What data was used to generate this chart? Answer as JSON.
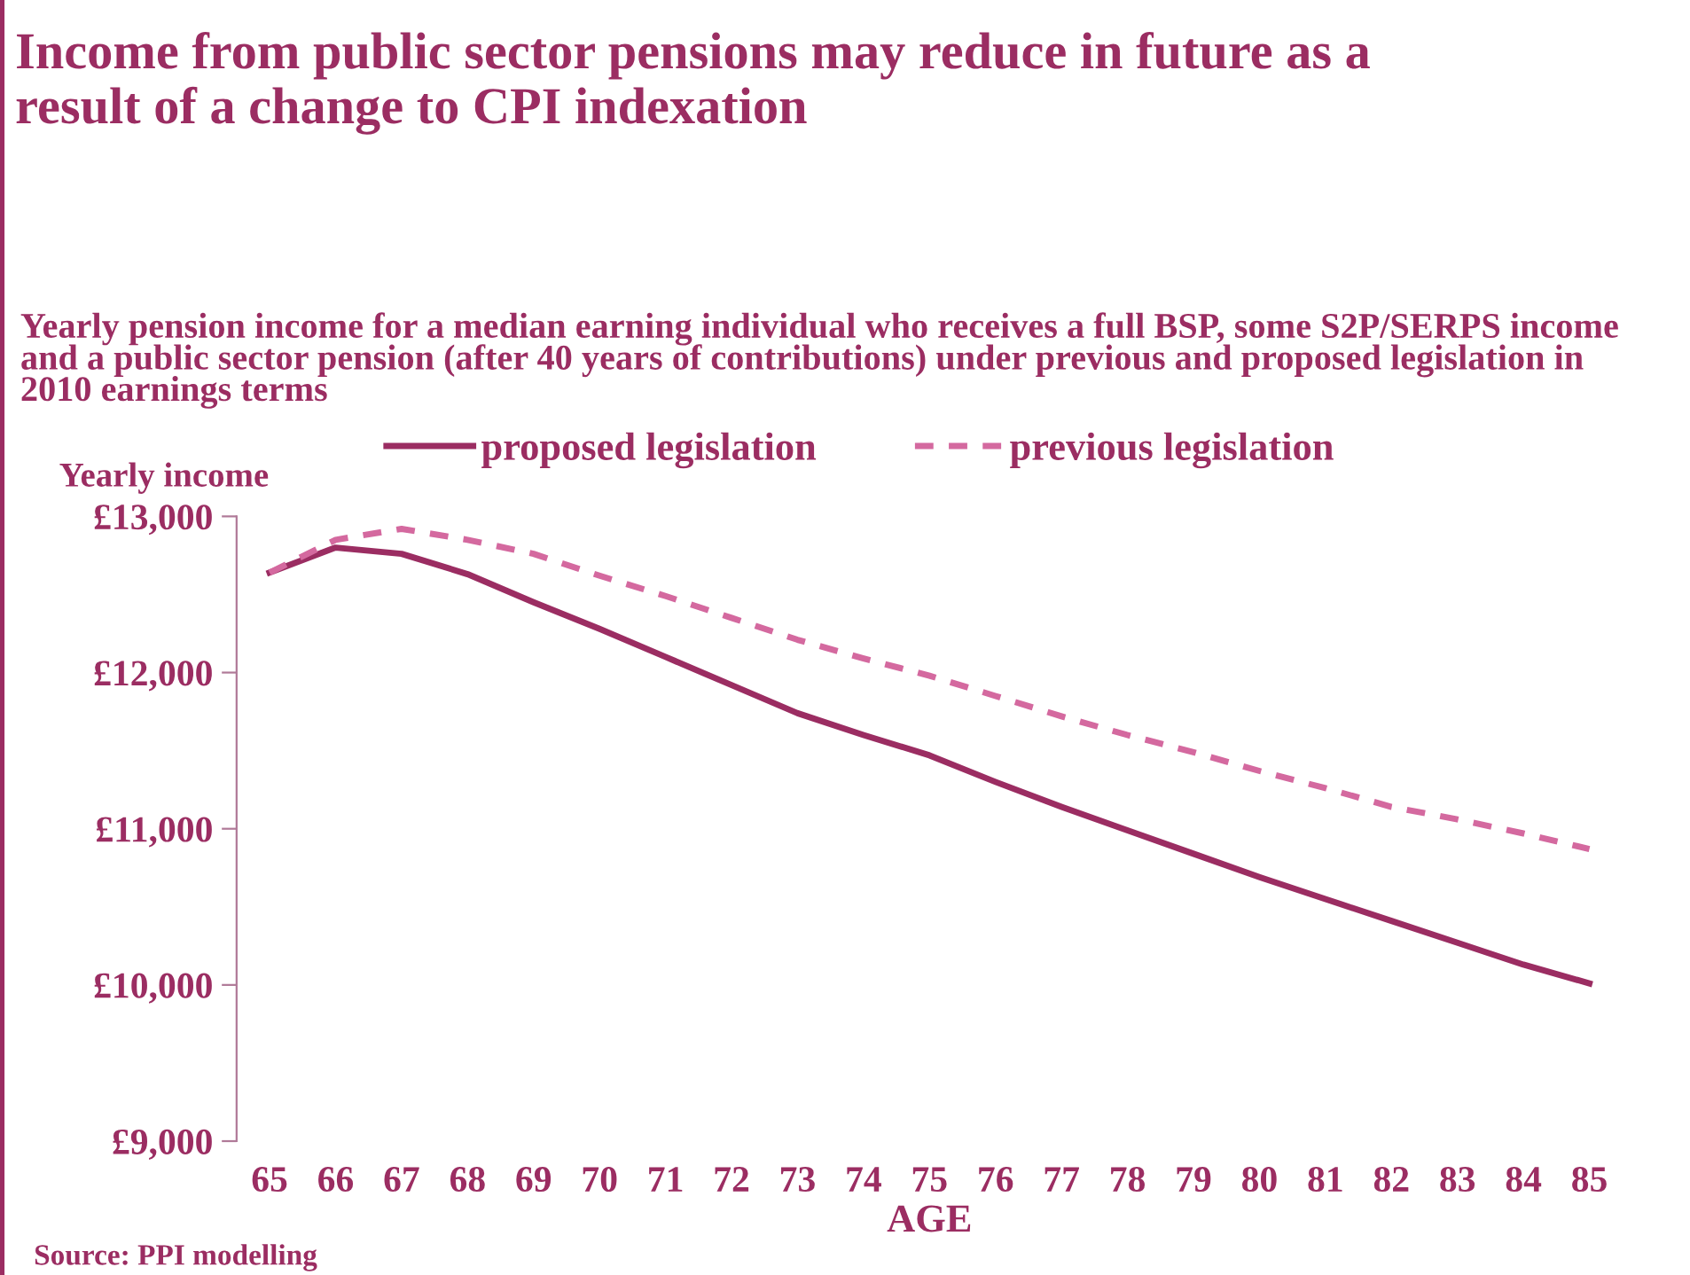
{
  "chart_data": {
    "type": "line",
    "title": "Income from public sector pensions may reduce in future as a result of a change to CPI indexation",
    "subtitle": "Yearly pension income for a median earning individual who receives a full BSP, some S2P/SERPS income and a public sector pension (after 40 years of contributions) under previous and proposed legislation in 2010 earnings terms",
    "ylabel": "Yearly income",
    "xlabel": "AGE",
    "categories": [
      "65",
      "66",
      "67",
      "68",
      "69",
      "70",
      "71",
      "72",
      "73",
      "74",
      "75",
      "76",
      "77",
      "78",
      "79",
      "80",
      "81",
      "82",
      "83",
      "84",
      "85"
    ],
    "series": [
      {
        "name": "proposed legislation",
        "color": "#9b2d62",
        "line_style": "solid",
        "values": [
          12640,
          12800,
          12760,
          12630,
          12450,
          12280,
          12100,
          11920,
          11740,
          11600,
          11470,
          11300,
          11140,
          10990,
          10840,
          10690,
          10550,
          10410,
          10270,
          10130,
          10010
        ]
      },
      {
        "name": "previous legislation",
        "color": "#d4699f",
        "line_style": "dashed",
        "values": [
          12640,
          12850,
          12920,
          12850,
          12760,
          12620,
          12490,
          12350,
          12210,
          12090,
          11980,
          11850,
          11720,
          11600,
          11490,
          11370,
          11260,
          11140,
          11060,
          10970,
          10870
        ]
      }
    ],
    "ylim": [
      9000,
      13000
    ],
    "yticks": [
      {
        "value": 9000,
        "label": "£9,000"
      },
      {
        "value": 10000,
        "label": "£10,000"
      },
      {
        "value": 11000,
        "label": "£11,000"
      },
      {
        "value": 12000,
        "label": "£12,000"
      },
      {
        "value": 13000,
        "label": "£13,000"
      }
    ],
    "grid": false,
    "legend": "top",
    "marker": "none",
    "annotations": [
      "Source: PPI modelling"
    ]
  }
}
